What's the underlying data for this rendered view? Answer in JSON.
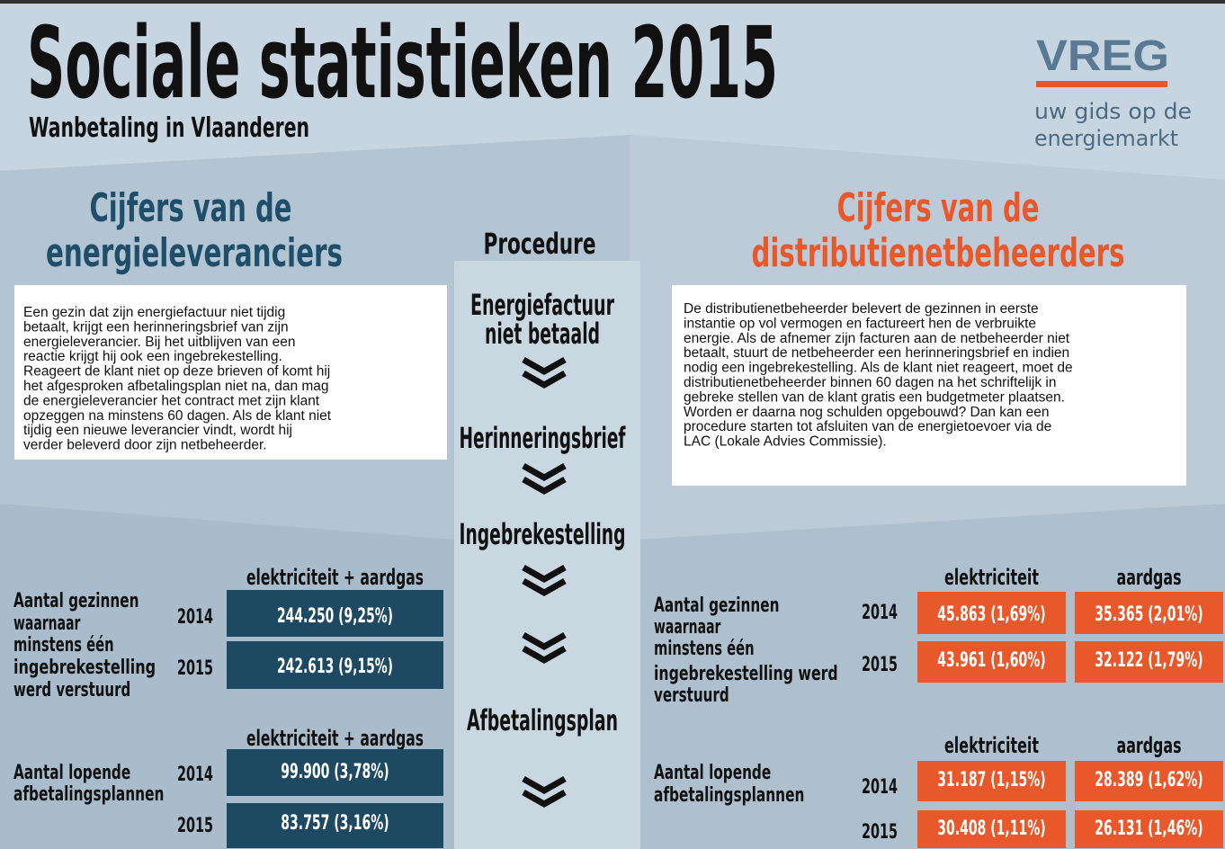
{
  "header": {
    "title": "Sociale statistieken 2015",
    "subtitle": "Wanbetaling in Vlaanderen",
    "logo": "VREG",
    "tagline": [
      "uw gids op de",
      "energiemarkt"
    ]
  },
  "left": {
    "heading": [
      "Cijfers van de",
      "energieleveranciers"
    ],
    "text": [
      "Een gezin dat zijn energiefactuur niet tijdig",
      "betaalt, krijgt een herinneringsbrief van zijn",
      "energieleverancier. Bij het uitblijven van een",
      "reactie krijgt hij ook een ingebrekestelling.",
      "Reageert de klant niet op deze brieven of komt hij",
      "het afgesproken afbetalingsplan niet na, dan mag",
      "de energieleverancier het contract met zijn klant",
      "opzeggen na minstens 60 dagen. Als de klant niet",
      "tijdig een nieuwe leverancier vindt, wordt hij",
      "verder beleverd door zijn netbeheerder."
    ],
    "tables": [
      {
        "columns": [
          "elektriciteit + aardgas"
        ],
        "label": [
          "Aantal gezinnen",
          "waarnaar",
          "minstens één",
          "ingebrekestelling",
          "werd verstuurd"
        ],
        "rows": [
          {
            "year": "2014",
            "values": [
              "244.250 (9,25%)"
            ]
          },
          {
            "year": "2015",
            "values": [
              "242.613 (9,15%)"
            ]
          }
        ]
      },
      {
        "columns": [
          "elektriciteit + aardgas"
        ],
        "label": [
          "Aantal lopende",
          "afbetalingsplannen"
        ],
        "rows": [
          {
            "year": "2014",
            "values": [
              "99.900 (3,78%)"
            ]
          },
          {
            "year": "2015",
            "values": [
              "83.757 (3,16%)"
            ]
          }
        ]
      }
    ]
  },
  "procedure": {
    "title": "Procedure",
    "steps": [
      [
        "Energiefactuur",
        "niet betaald"
      ],
      [
        "Herinneringsbrief"
      ],
      [
        "Ingebrekestelling"
      ],
      [
        "Afbetalingsplan"
      ]
    ]
  },
  "right": {
    "heading": [
      "Cijfers van de",
      "distributienetbeheerders"
    ],
    "text": [
      "De distributienetbeheerder belevert de gezinnen in eerste",
      "instantie op vol vermogen en factureert hen de verbruikte",
      "energie. Als de afnemer zijn facturen aan de netbeheerder niet",
      "betaalt, stuurt de netbeheerder een herinneringsbrief en indien",
      "nodig een ingebrekestelling. Als de klant niet reageert, moet de",
      "distributienetbeheerder binnen 60 dagen na het schriftelijk in",
      "gebreke stellen van de klant gratis een budgetmeter plaatsen.",
      "Worden er daarna nog schulden opgebouwd? Dan kan een",
      "procedure starten tot afsluiten van de energietoevoer via de",
      "LAC (Lokale Advies Commissie)."
    ],
    "tables": [
      {
        "columns": [
          "elektriciteit",
          "aardgas"
        ],
        "label": [
          "Aantal gezinnen",
          "waarnaar",
          "minstens één",
          "ingebrekestelling werd",
          "verstuurd"
        ],
        "rows": [
          {
            "year": "2014",
            "values": [
              "45.863 (1,69%)",
              "35.365 (2,01%)"
            ]
          },
          {
            "year": "2015",
            "values": [
              "43.961 (1,60%)",
              "32.122 (1,79%)"
            ]
          }
        ]
      },
      {
        "columns": [
          "elektriciteit",
          "aardgas"
        ],
        "label": [
          "Aantal lopende",
          "afbetalingsplannen"
        ],
        "rows": [
          {
            "year": "2014",
            "values": [
              "31.187 (1,15%)",
              "28.389 (1,62%)"
            ]
          },
          {
            "year": "2015",
            "values": [
              "30.408 (1,11%)",
              "26.131 (1,46%)"
            ]
          }
        ]
      }
    ]
  }
}
